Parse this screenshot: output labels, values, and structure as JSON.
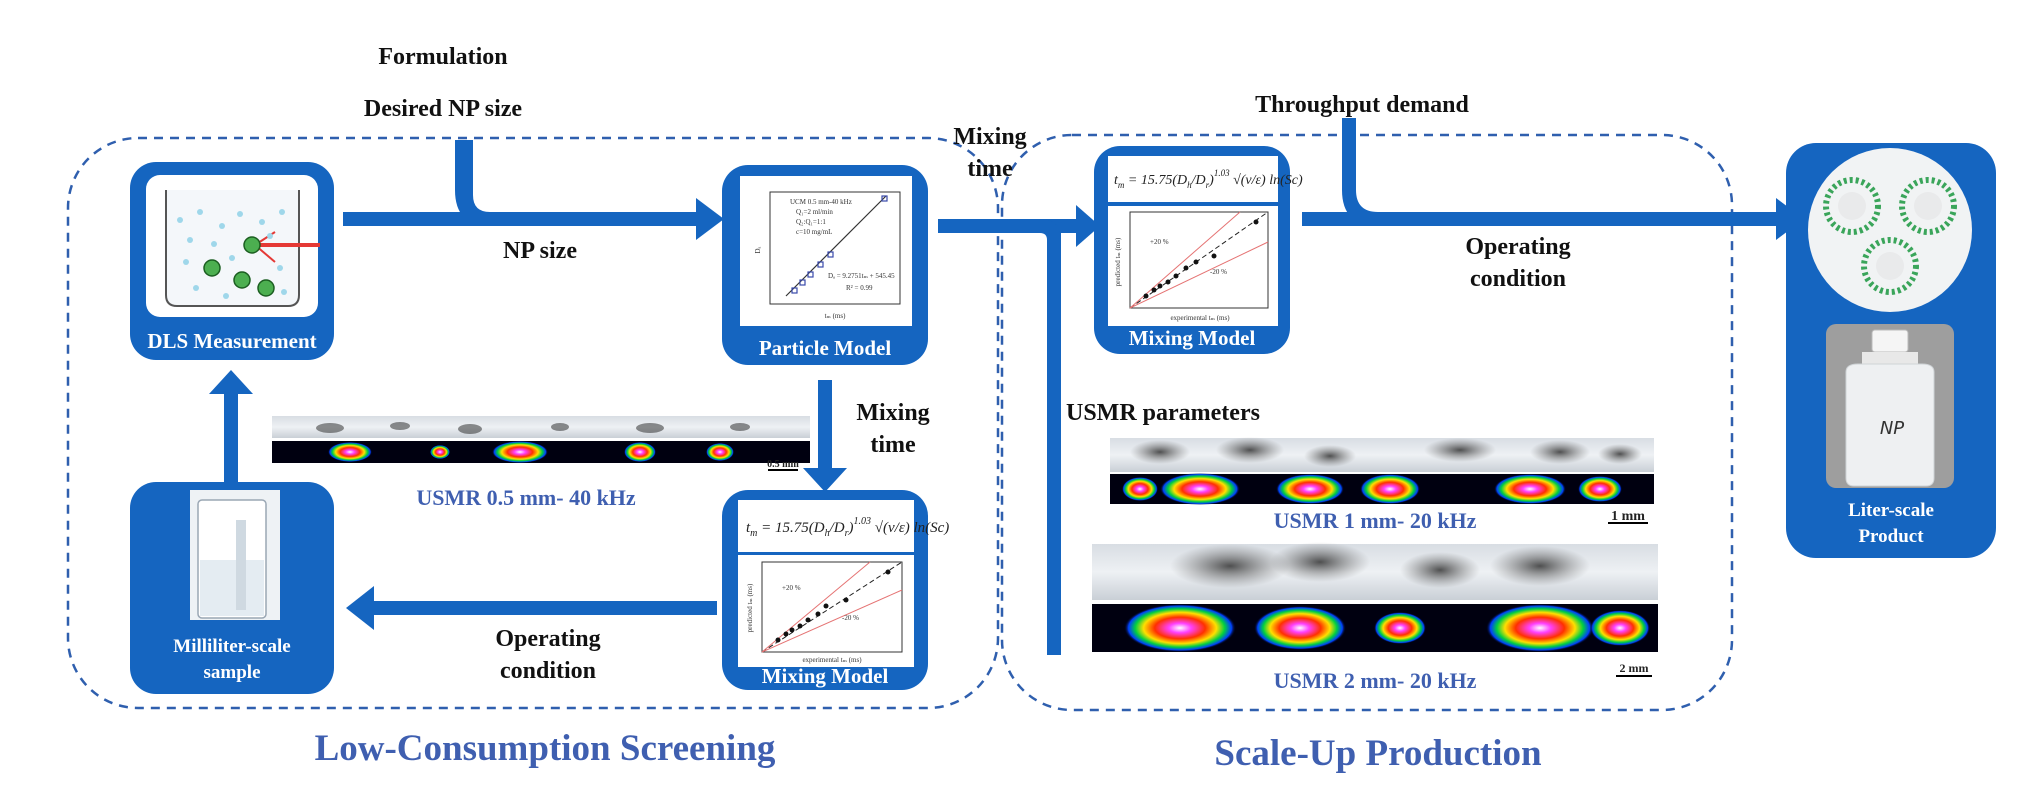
{
  "inputs": {
    "formulation": "Formulation",
    "desired_np_size": "Desired NP size",
    "throughput_demand": "Throughput demand"
  },
  "boxes": {
    "dls": "DLS Measurement",
    "particle_model": "Particle Model",
    "mixing_model_left": "Mixing Model",
    "milliliter_sample_line1": "Milliliter-scale",
    "milliliter_sample_line2": "sample",
    "mixing_model_right": "Mixing Model",
    "liter_product_line1": "Liter-scale",
    "liter_product_line2": "Product"
  },
  "arrows": {
    "np_size": "NP size",
    "mixing_time_down_line1": "Mixing",
    "mixing_time_down_line2": "time",
    "operating_left_line1": "Operating",
    "operating_left_line2": "condition",
    "mixing_time_mid_line1": "Mixing",
    "mixing_time_mid_line2": "time",
    "operating_right_line1": "Operating",
    "operating_right_line2": "condition",
    "usmr_parameters": "USMR parameters"
  },
  "usmr": {
    "small_label": "USMR 0.5 mm- 40 kHz",
    "small_scale": "0.5 mm",
    "mid_label": "USMR 1 mm- 20 kHz",
    "mid_scale": "1 mm",
    "large_label": "USMR 2 mm- 20 kHz",
    "large_scale": "2 mm"
  },
  "sections": {
    "left": "Low-Consumption Screening",
    "right": "Scale-Up Production"
  },
  "particle_plot": {
    "legend_1": "UCM 0.5 mm-40 kHz",
    "legend_2": "Q₁=2 ml/min",
    "legend_3": "Q₂:Q₁=1:1",
    "legend_4": "c=10 mg/mL",
    "fit": "Dₐ = 9.2751tₘ + 545.45",
    "r2": "R² = 0.99",
    "xlabel": "tₘ (ms)",
    "ylabel": "Dₐ"
  },
  "mixing_plot": {
    "plus": "+20 %",
    "minus": "-20 %",
    "xlabel": "experimental tₘ (ms)",
    "ylabel": "predicted tₘ (ms)"
  },
  "bottle_label": "NP",
  "colors": {
    "brand_blue": "#1565c0",
    "label_blue": "#3f5fb0",
    "dashed": "#2f5fae"
  }
}
